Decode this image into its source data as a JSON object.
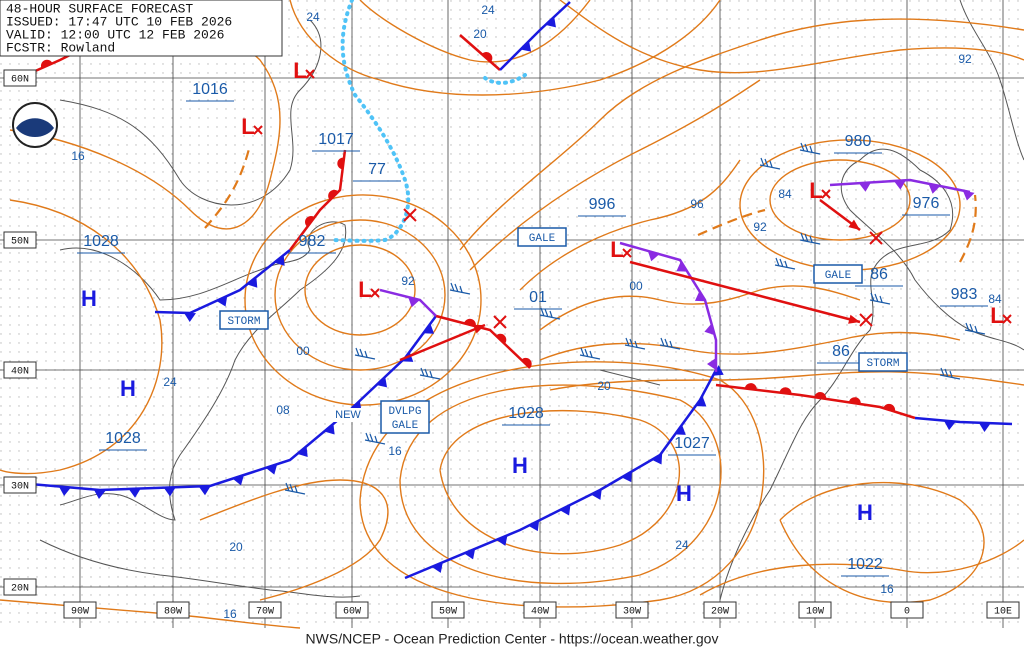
{
  "header": {
    "lines": [
      "48-HOUR SURFACE FORECAST",
      "ISSUED: 17:47 UTC 10 FEB 2026",
      "VALID: 12:00 UTC 12 FEB 2026",
      "FCSTR: Rowland"
    ]
  },
  "footer": "NWS/NCEP - Ocean Prediction Center - https://ocean.weather.gov",
  "lat_labels": [
    "60N",
    "50N",
    "40N",
    "30N",
    "20N"
  ],
  "lon_labels": [
    "90W",
    "80W",
    "70W",
    "60W",
    "50W",
    "40W",
    "30W",
    "20W",
    "10W",
    "0",
    "10E"
  ],
  "pressure_labels": [
    "1016",
    "1017",
    "77",
    "982",
    "1028",
    "996",
    "980",
    "976",
    "86",
    "983",
    "86",
    "1028",
    "1027",
    "1022",
    "1028",
    "01"
  ],
  "contour_labels": [
    "24",
    "20",
    "24",
    "16",
    "92",
    "96",
    "84",
    "92",
    "84",
    "92",
    "00",
    "08",
    "24",
    "16",
    "00",
    "20",
    "24",
    "16",
    "20",
    "16"
  ],
  "warnings": [
    [
      "GALE"
    ],
    [
      "STORM"
    ],
    [
      "DVLPG",
      "GALE"
    ],
    [
      "GALE"
    ],
    [
      "STORM"
    ]
  ],
  "new_label": "NEW",
  "high_symbol": "H",
  "low_symbol": "L"
}
